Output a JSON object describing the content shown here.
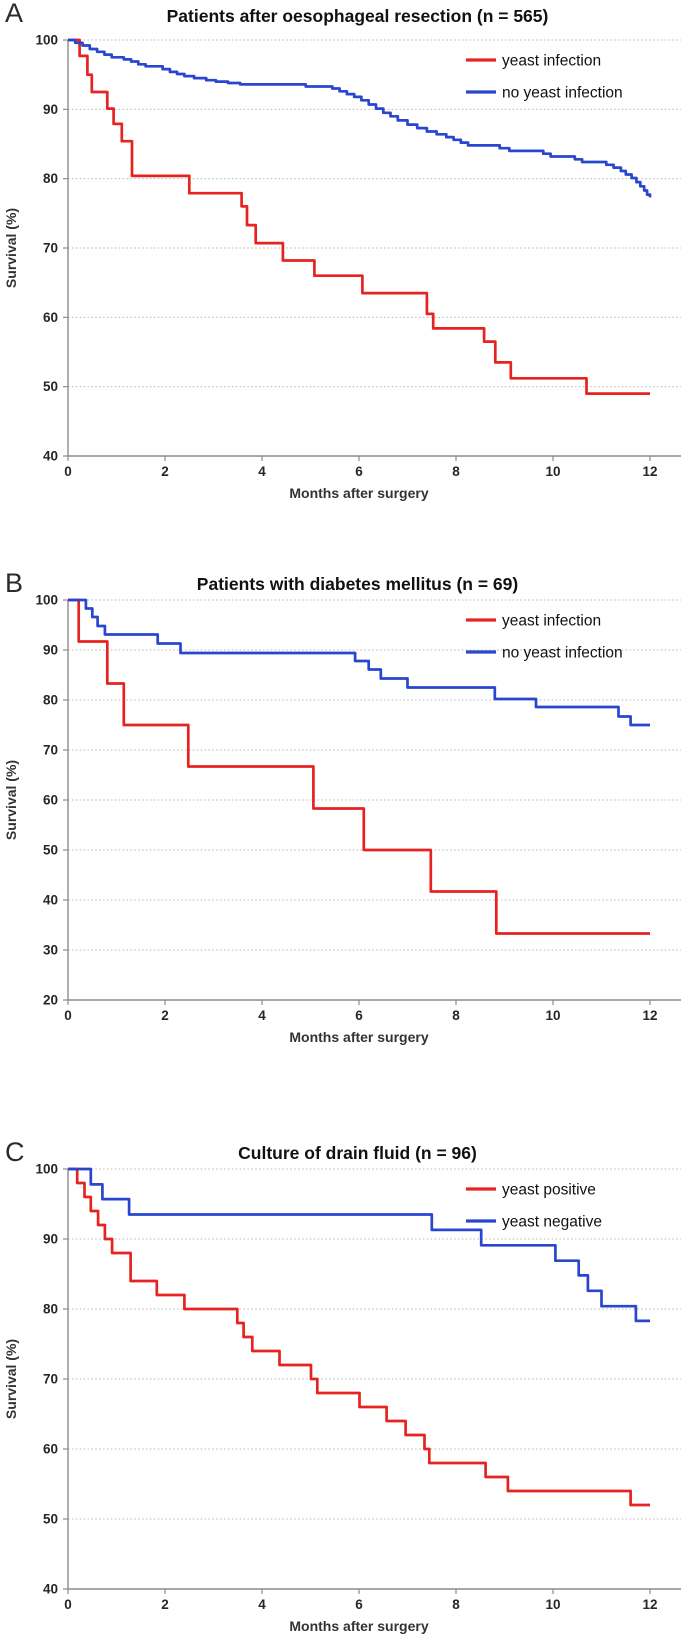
{
  "figure_label": "Kaplan-Meier survival curves",
  "colors": {
    "red_series": "#e62320",
    "blue_series": "#2a46cf",
    "gridline": "#b8b8b8",
    "axis": "#8c8c8c",
    "tick_text": "#262626",
    "axis_title_text": "#333333",
    "title_text": "#111111",
    "letter_text": "#2b2b2b",
    "legend_text": "#111111"
  },
  "chart_data": [
    {
      "type": "step-line",
      "letter": "A",
      "title": "Patients after oesophageal resection (n = 565)",
      "xlabel": "Months after surgery",
      "ylabel": "Survival (%)",
      "xlim": [
        0,
        12
      ],
      "x_ticks": [
        0,
        2,
        4,
        6,
        8,
        10,
        12
      ],
      "ylim": [
        40,
        100
      ],
      "y_ticks": [
        40,
        50,
        60,
        70,
        80,
        90,
        100
      ],
      "grid": "dotted-horizontal",
      "legend_position": "top-right",
      "series": [
        {
          "name": "yeast infection",
          "color": "#e62320",
          "points": [
            [
              0,
              100
            ],
            [
              0.24,
              97.7
            ],
            [
              0.4,
              95.0
            ],
            [
              0.49,
              92.5
            ],
            [
              0.81,
              90.1
            ],
            [
              0.94,
              87.9
            ],
            [
              1.11,
              85.4
            ],
            [
              1.32,
              80.4
            ],
            [
              2.5,
              77.9
            ],
            [
              3.58,
              76.0
            ],
            [
              3.69,
              73.3
            ],
            [
              3.87,
              70.7
            ],
            [
              4.43,
              68.2
            ],
            [
              5.08,
              66.0
            ],
            [
              6.07,
              63.5
            ],
            [
              7.4,
              60.5
            ],
            [
              7.53,
              58.4
            ],
            [
              8.58,
              56.5
            ],
            [
              8.81,
              53.5
            ],
            [
              9.13,
              51.2
            ],
            [
              10.69,
              49.0
            ],
            [
              12,
              49.0
            ]
          ]
        },
        {
          "name": "no yeast infection",
          "color": "#2a46cf",
          "points": [
            [
              0,
              100
            ],
            [
              0.15,
              99.6
            ],
            [
              0.3,
              99.2
            ],
            [
              0.45,
              98.7
            ],
            [
              0.6,
              98.3
            ],
            [
              0.75,
              97.9
            ],
            [
              0.9,
              97.5
            ],
            [
              1.15,
              97.2
            ],
            [
              1.3,
              96.9
            ],
            [
              1.45,
              96.5
            ],
            [
              1.6,
              96.2
            ],
            [
              1.95,
              95.8
            ],
            [
              2.1,
              95.4
            ],
            [
              2.25,
              95.1
            ],
            [
              2.4,
              94.8
            ],
            [
              2.6,
              94.5
            ],
            [
              2.85,
              94.2
            ],
            [
              3.05,
              94.0
            ],
            [
              3.3,
              93.8
            ],
            [
              3.55,
              93.6
            ],
            [
              4.9,
              93.3
            ],
            [
              5.45,
              93.0
            ],
            [
              5.6,
              92.6
            ],
            [
              5.75,
              92.2
            ],
            [
              5.9,
              91.8
            ],
            [
              6.05,
              91.3
            ],
            [
              6.2,
              90.7
            ],
            [
              6.35,
              90.1
            ],
            [
              6.5,
              89.5
            ],
            [
              6.65,
              89.0
            ],
            [
              6.8,
              88.4
            ],
            [
              7.0,
              87.8
            ],
            [
              7.2,
              87.3
            ],
            [
              7.4,
              86.8
            ],
            [
              7.6,
              86.4
            ],
            [
              7.8,
              86.0
            ],
            [
              7.95,
              85.6
            ],
            [
              8.1,
              85.2
            ],
            [
              8.25,
              84.8
            ],
            [
              8.9,
              84.4
            ],
            [
              9.1,
              84.0
            ],
            [
              9.8,
              83.6
            ],
            [
              9.95,
              83.2
            ],
            [
              10.45,
              82.8
            ],
            [
              10.6,
              82.4
            ],
            [
              11.1,
              82.0
            ],
            [
              11.25,
              81.6
            ],
            [
              11.4,
              81.1
            ],
            [
              11.5,
              80.6
            ],
            [
              11.62,
              80.1
            ],
            [
              11.72,
              79.5
            ],
            [
              11.8,
              78.9
            ],
            [
              11.88,
              78.3
            ],
            [
              11.94,
              77.7
            ],
            [
              12,
              77.3
            ]
          ]
        }
      ]
    },
    {
      "type": "step-line",
      "letter": "B",
      "title": "Patients with diabetes mellitus (n = 69)",
      "xlabel": "Months after surgery",
      "ylabel": "Survival (%)",
      "xlim": [
        0,
        12
      ],
      "x_ticks": [
        0,
        2,
        4,
        6,
        8,
        10,
        12
      ],
      "ylim": [
        20,
        100
      ],
      "y_ticks": [
        20,
        30,
        40,
        50,
        60,
        70,
        80,
        90,
        100
      ],
      "grid": "dotted-horizontal",
      "legend_position": "top-right",
      "series": [
        {
          "name": "yeast infection",
          "color": "#e62320",
          "points": [
            [
              0,
              100
            ],
            [
              0.22,
              91.7
            ],
            [
              0.81,
              83.3
            ],
            [
              1.15,
              75.0
            ],
            [
              2.48,
              66.7
            ],
            [
              5.06,
              58.3
            ],
            [
              6.1,
              50.0
            ],
            [
              7.48,
              41.7
            ],
            [
              8.83,
              33.3
            ],
            [
              12,
              33.3
            ]
          ]
        },
        {
          "name": "no yeast infection",
          "color": "#2a46cf",
          "points": [
            [
              0,
              100
            ],
            [
              0.37,
              98.3
            ],
            [
              0.5,
              96.6
            ],
            [
              0.61,
              94.8
            ],
            [
              0.76,
              93.1
            ],
            [
              1.85,
              91.3
            ],
            [
              2.32,
              89.4
            ],
            [
              5.92,
              87.8
            ],
            [
              6.2,
              86.1
            ],
            [
              6.45,
              84.3
            ],
            [
              7.0,
              82.5
            ],
            [
              8.8,
              80.2
            ],
            [
              9.65,
              78.6
            ],
            [
              11.35,
              76.7
            ],
            [
              11.6,
              75.0
            ],
            [
              12,
              75.0
            ]
          ]
        }
      ]
    },
    {
      "type": "step-line",
      "letter": "C",
      "title": "Culture of drain fluid (n = 96)",
      "xlabel": "Months after surgery",
      "ylabel": "Survival (%)",
      "xlim": [
        0,
        12
      ],
      "x_ticks": [
        0,
        2,
        4,
        6,
        8,
        10,
        12
      ],
      "ylim": [
        40,
        100
      ],
      "y_ticks": [
        40,
        50,
        60,
        70,
        80,
        90,
        100
      ],
      "grid": "dotted-horizontal",
      "legend_position": "top-right",
      "series": [
        {
          "name": "yeast positive",
          "color": "#e62320",
          "points": [
            [
              0,
              100
            ],
            [
              0.19,
              98
            ],
            [
              0.34,
              96
            ],
            [
              0.47,
              94
            ],
            [
              0.62,
              92
            ],
            [
              0.76,
              90
            ],
            [
              0.91,
              88
            ],
            [
              1.29,
              84
            ],
            [
              1.83,
              82
            ],
            [
              2.4,
              80
            ],
            [
              3.49,
              78
            ],
            [
              3.62,
              76
            ],
            [
              3.8,
              74
            ],
            [
              4.36,
              72
            ],
            [
              5.01,
              70
            ],
            [
              5.14,
              68
            ],
            [
              6.01,
              66
            ],
            [
              6.57,
              64
            ],
            [
              6.96,
              62
            ],
            [
              7.35,
              60
            ],
            [
              7.45,
              58
            ],
            [
              8.61,
              56
            ],
            [
              9.07,
              54
            ],
            [
              11.6,
              52
            ],
            [
              12,
              52
            ]
          ]
        },
        {
          "name": "yeast negative",
          "color": "#2a46cf",
          "points": [
            [
              0,
              100
            ],
            [
              0.47,
              97.8
            ],
            [
              0.71,
              95.7
            ],
            [
              1.26,
              93.5
            ],
            [
              7.5,
              91.3
            ],
            [
              8.52,
              89.1
            ],
            [
              10.05,
              86.9
            ],
            [
              10.53,
              84.8
            ],
            [
              10.72,
              82.6
            ],
            [
              11.0,
              80.4
            ],
            [
              11.71,
              78.3
            ],
            [
              12,
              78.3
            ]
          ]
        }
      ]
    }
  ]
}
